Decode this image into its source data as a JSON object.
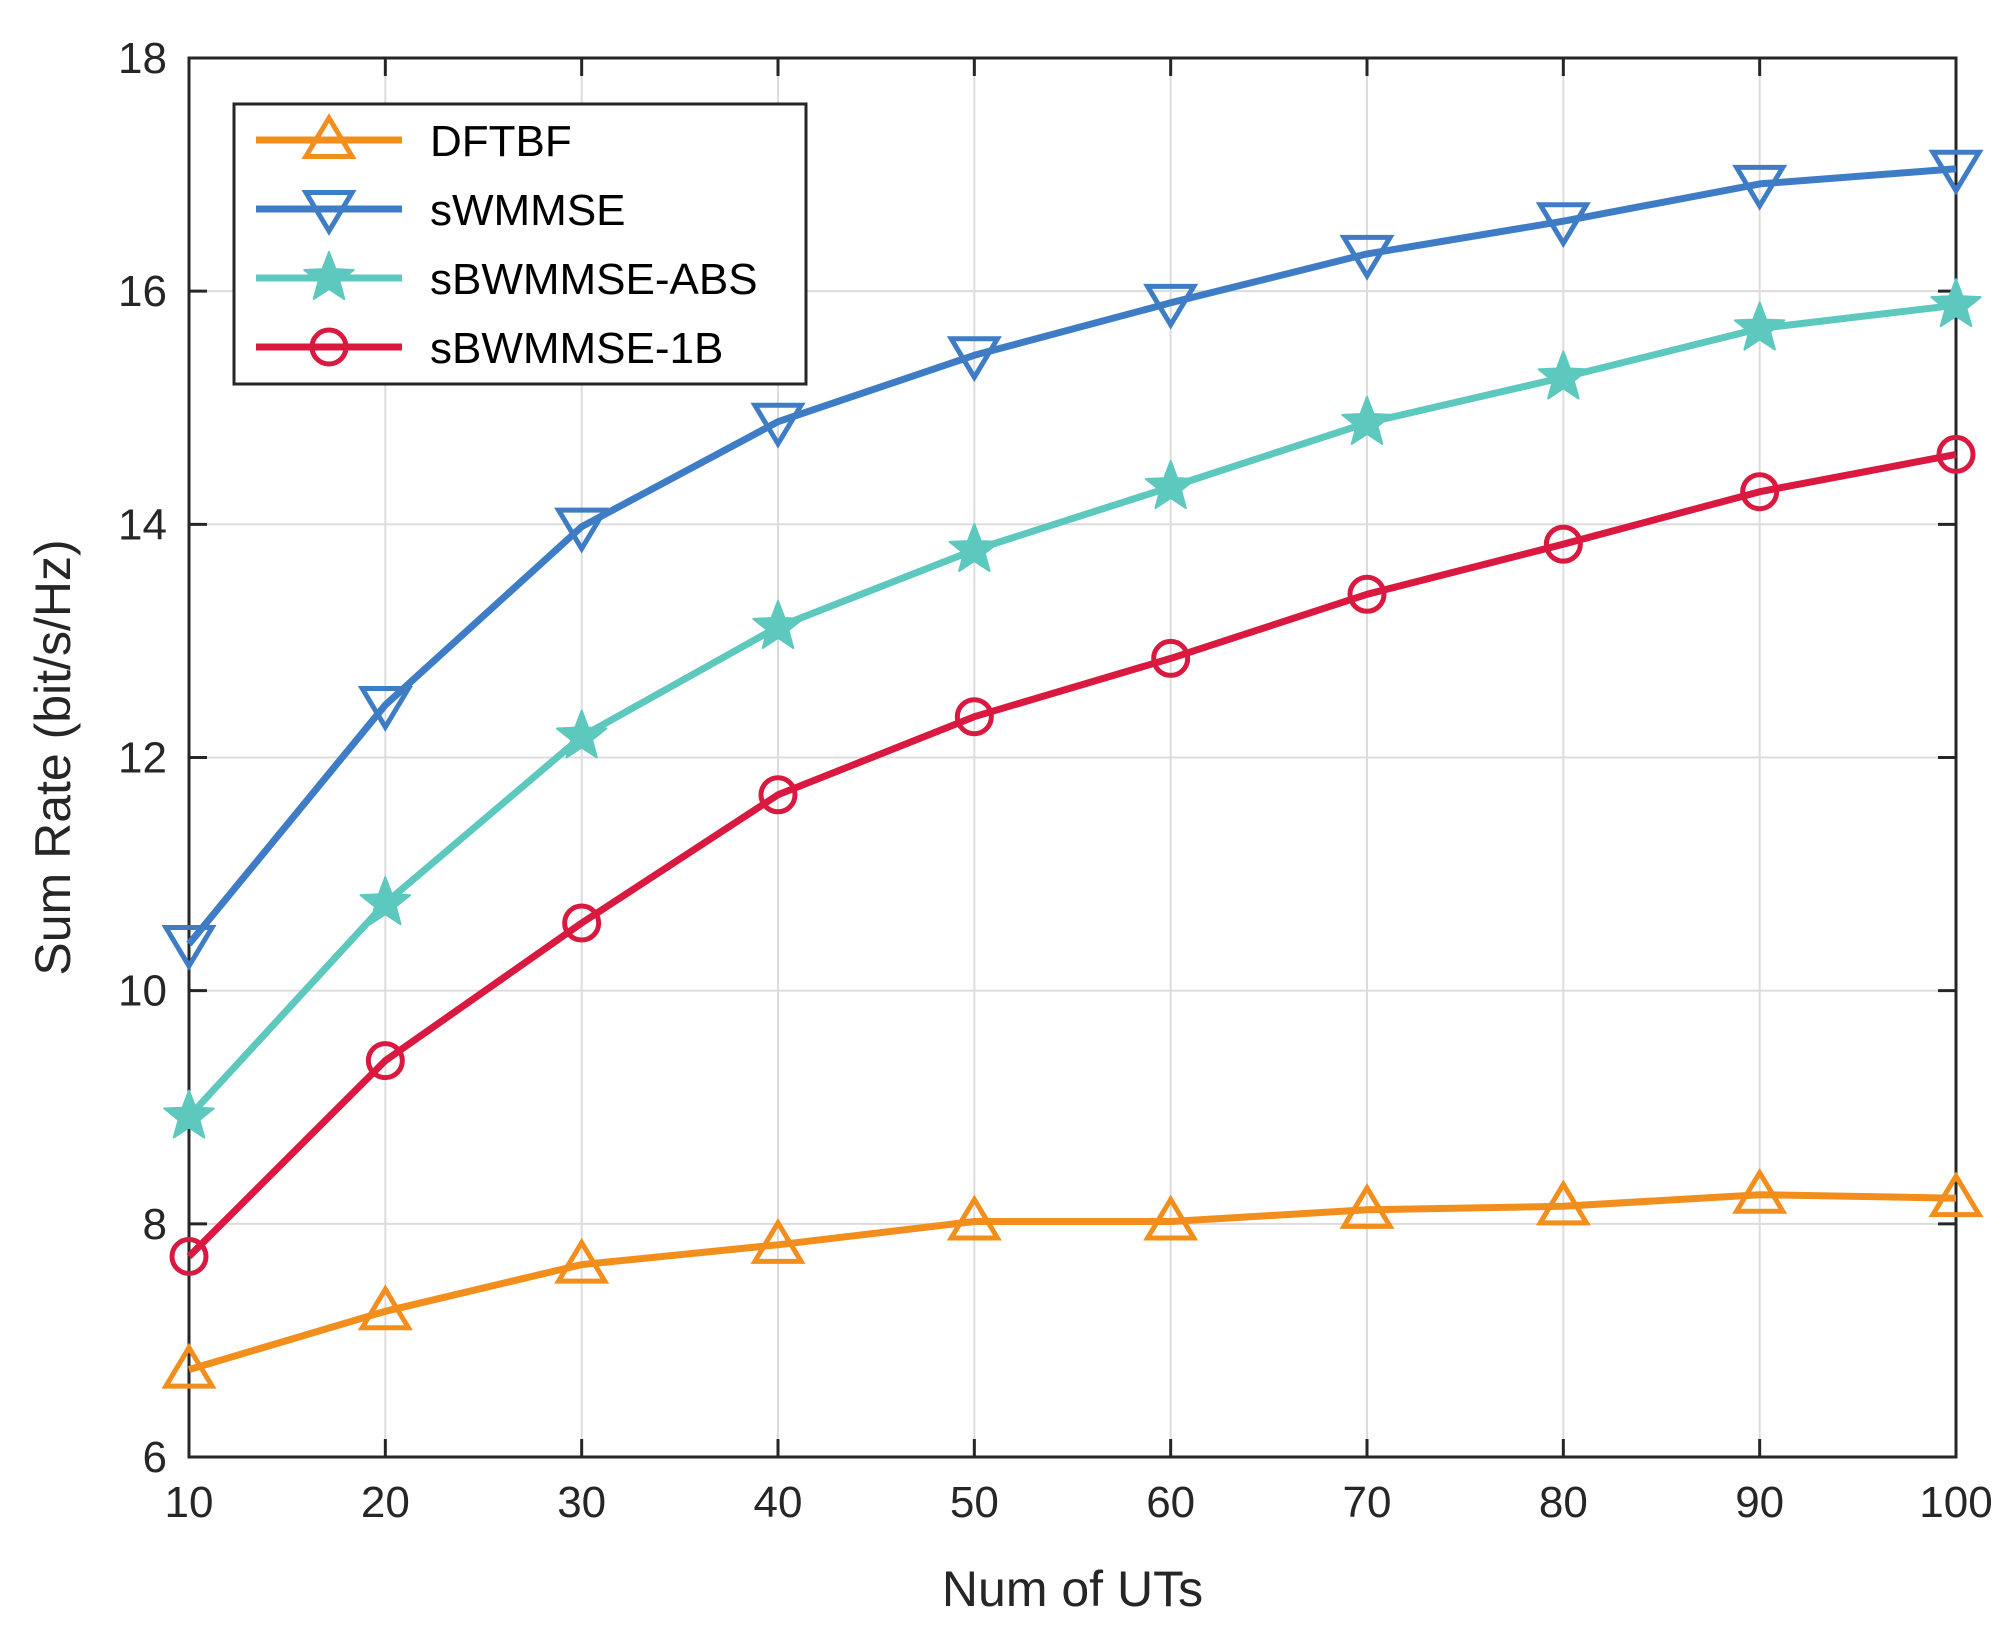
{
  "chart_data": {
    "type": "line",
    "title": "",
    "xlabel": "Num of UTs",
    "ylabel": "Sum Rate (bit/s/Hz)",
    "xlim": [
      10,
      100
    ],
    "ylim": [
      6,
      18
    ],
    "xticks": [
      10,
      20,
      30,
      40,
      50,
      60,
      70,
      80,
      90,
      100
    ],
    "yticks": [
      6,
      8,
      10,
      12,
      14,
      16,
      18
    ],
    "grid": true,
    "legend_position": "top-left",
    "x": [
      10,
      20,
      30,
      40,
      50,
      60,
      70,
      80,
      90,
      100
    ],
    "series": [
      {
        "name": "DFTBF",
        "color": "#F28E1C",
        "marker": "triangle-up",
        "values": [
          6.75,
          7.25,
          7.65,
          7.82,
          8.02,
          8.02,
          8.12,
          8.15,
          8.25,
          8.22
        ]
      },
      {
        "name": "sWMMSE",
        "color": "#3E7DC6",
        "marker": "triangle-down",
        "values": [
          10.4,
          12.45,
          13.98,
          14.88,
          15.45,
          15.9,
          16.32,
          16.6,
          16.92,
          17.05
        ]
      },
      {
        "name": "sBWMMSE-ABS",
        "color": "#5CC8BE",
        "marker": "star",
        "values": [
          8.92,
          10.75,
          12.18,
          13.12,
          13.78,
          14.32,
          14.87,
          15.26,
          15.68,
          15.88
        ]
      },
      {
        "name": "sBWMMSE-1B",
        "color": "#D9193F",
        "marker": "circle",
        "values": [
          7.72,
          9.4,
          10.58,
          11.68,
          12.35,
          12.85,
          13.4,
          13.83,
          14.28,
          14.6
        ]
      }
    ]
  }
}
